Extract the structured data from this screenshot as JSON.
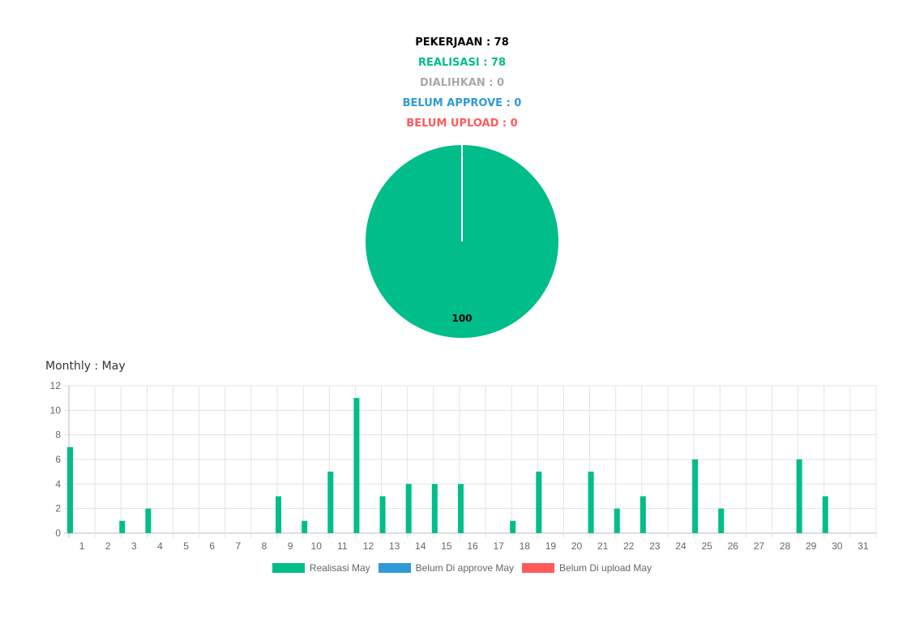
{
  "summary": {
    "pekerjaan": "PEKERJAAN : 78",
    "realisasi": "REALISASI : 78",
    "dialihkan": "DIALIHKAN : 0",
    "belum_approve": "BELUM APPROVE : 0",
    "belum_upload": "BELUM UPLOAD : 0"
  },
  "colors": {
    "pekerjaan": "#000000",
    "realisasi": "#00bd8a",
    "dialihkan": "#a9a9a9",
    "belum_approve": "#2f9ad6",
    "belum_upload": "#ff5a5a"
  },
  "chart_data": [
    {
      "type": "pie",
      "labels": [
        "100"
      ],
      "values": [
        100
      ],
      "colors": [
        "#00bd8a"
      ]
    },
    {
      "type": "bar",
      "title": "Monthly : May",
      "categories": [
        "1",
        "2",
        "3",
        "4",
        "5",
        "6",
        "7",
        "8",
        "9",
        "10",
        "11",
        "12",
        "13",
        "14",
        "15",
        "16",
        "17",
        "18",
        "19",
        "20",
        "21",
        "22",
        "23",
        "24",
        "25",
        "26",
        "27",
        "28",
        "29",
        "30",
        "31"
      ],
      "ylim": [
        0,
        12
      ],
      "yticks": [
        "0",
        "2",
        "4",
        "6",
        "8",
        "10",
        "12"
      ],
      "grid": true,
      "legend_position": "bottom",
      "series": [
        {
          "name": "Realisasi May",
          "color": "#00bd8a",
          "values": [
            7,
            0,
            1,
            2,
            0,
            0,
            0,
            0,
            3,
            1,
            5,
            11,
            3,
            4,
            4,
            4,
            0,
            1,
            5,
            0,
            5,
            2,
            3,
            0,
            6,
            2,
            0,
            0,
            6,
            3,
            0
          ]
        },
        {
          "name": "Belum Di approve May",
          "color": "#2f9ad6",
          "values": [
            0,
            0,
            0,
            0,
            0,
            0,
            0,
            0,
            0,
            0,
            0,
            0,
            0,
            0,
            0,
            0,
            0,
            0,
            0,
            0,
            0,
            0,
            0,
            0,
            0,
            0,
            0,
            0,
            0,
            0,
            0
          ]
        },
        {
          "name": "Belum Di upload May",
          "color": "#ff5a5a",
          "values": [
            0,
            0,
            0,
            0,
            0,
            0,
            0,
            0,
            0,
            0,
            0,
            0,
            0,
            0,
            0,
            0,
            0,
            0,
            0,
            0,
            0,
            0,
            0,
            0,
            0,
            0,
            0,
            0,
            0,
            0,
            0
          ]
        }
      ]
    }
  ]
}
